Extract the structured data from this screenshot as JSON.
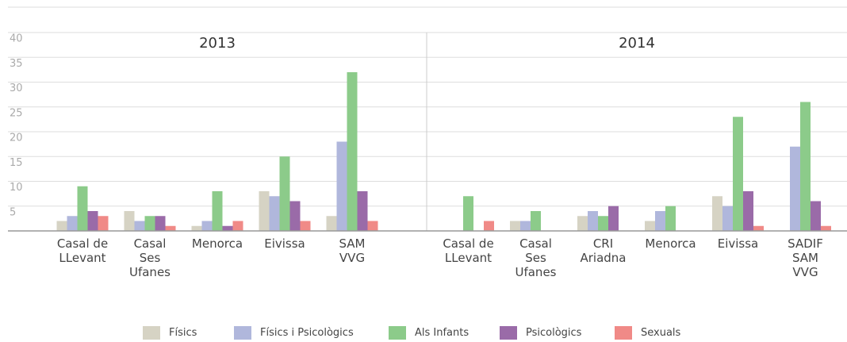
{
  "chart_data": {
    "type": "bar",
    "ylim": [
      0,
      40
    ],
    "yticks": [
      5,
      10,
      15,
      20,
      25,
      30,
      35,
      40
    ],
    "grid": true,
    "series": [
      {
        "name": "Físics",
        "color": "#d6d3c4"
      },
      {
        "name": "Físics i Psicològics",
        "color": "#b0b7dc"
      },
      {
        "name": "Als Infants",
        "color": "#8ccb8a"
      },
      {
        "name": "Psicològics",
        "color": "#9a6ba8"
      },
      {
        "name": "Sexuals",
        "color": "#f08a87"
      }
    ],
    "panels": [
      {
        "title": "2013",
        "categories": [
          "Casal de\nLLevant",
          "Casal\nSes\nUfanes",
          "Menorca",
          "Eivissa",
          "SAM\nVVG"
        ],
        "series": [
          {
            "values": [
              2,
              4,
              1,
              8,
              3
            ]
          },
          {
            "values": [
              3,
              2,
              2,
              7,
              18
            ]
          },
          {
            "values": [
              9,
              3,
              8,
              15,
              32
            ]
          },
          {
            "values": [
              4,
              3,
              1,
              6,
              8
            ]
          },
          {
            "values": [
              3,
              1,
              2,
              2,
              2
            ]
          }
        ]
      },
      {
        "title": "2014",
        "categories": [
          "Casal de\nLLevant",
          "Casal\nSes\nUfanes",
          "CRI\nAriadna",
          "Menorca",
          "Eivissa",
          "SADIF\nSAM\nVVG"
        ],
        "series": [
          {
            "values": [
              0,
              2,
              3,
              2,
              7,
              0
            ]
          },
          {
            "values": [
              0,
              2,
              4,
              4,
              5,
              17
            ]
          },
          {
            "values": [
              7,
              4,
              3,
              5,
              23,
              26
            ]
          },
          {
            "values": [
              0,
              0,
              5,
              0,
              8,
              6
            ]
          },
          {
            "values": [
              2,
              0,
              0,
              0,
              1,
              1
            ]
          }
        ]
      }
    ]
  }
}
